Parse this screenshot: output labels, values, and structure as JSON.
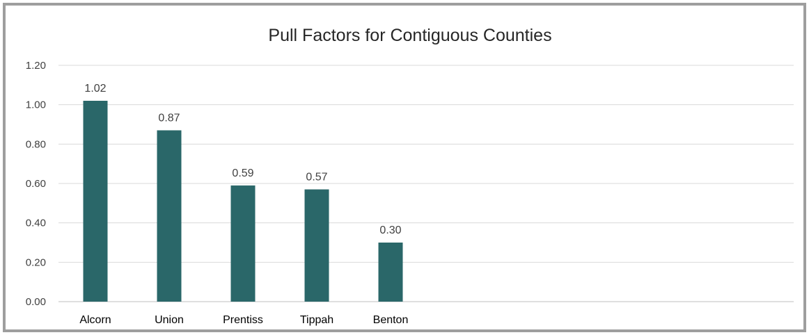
{
  "chart_data": {
    "type": "bar",
    "title": "Pull Factors for Contiguous Counties",
    "xlabel": "",
    "ylabel": "",
    "categories": [
      "Alcorn",
      "Union",
      "Prentiss",
      "Tippah",
      "Benton"
    ],
    "values": [
      1.02,
      0.87,
      0.59,
      0.57,
      0.3
    ],
    "data_labels": [
      "1.02",
      "0.87",
      "0.59",
      "0.57",
      "0.30"
    ],
    "ylim": [
      0,
      1.2
    ],
    "yticks": [
      0,
      0.2,
      0.4,
      0.6,
      0.8,
      1.0,
      1.2
    ],
    "ytick_labels": [
      "0.00",
      "0.20",
      "0.40",
      "0.60",
      "0.80",
      "1.00",
      "1.20"
    ],
    "grid": true,
    "legend": "none",
    "colors": {
      "bar": "#2a6769",
      "grid": "#d9d9d9",
      "frame": "#9e9e9e"
    }
  }
}
